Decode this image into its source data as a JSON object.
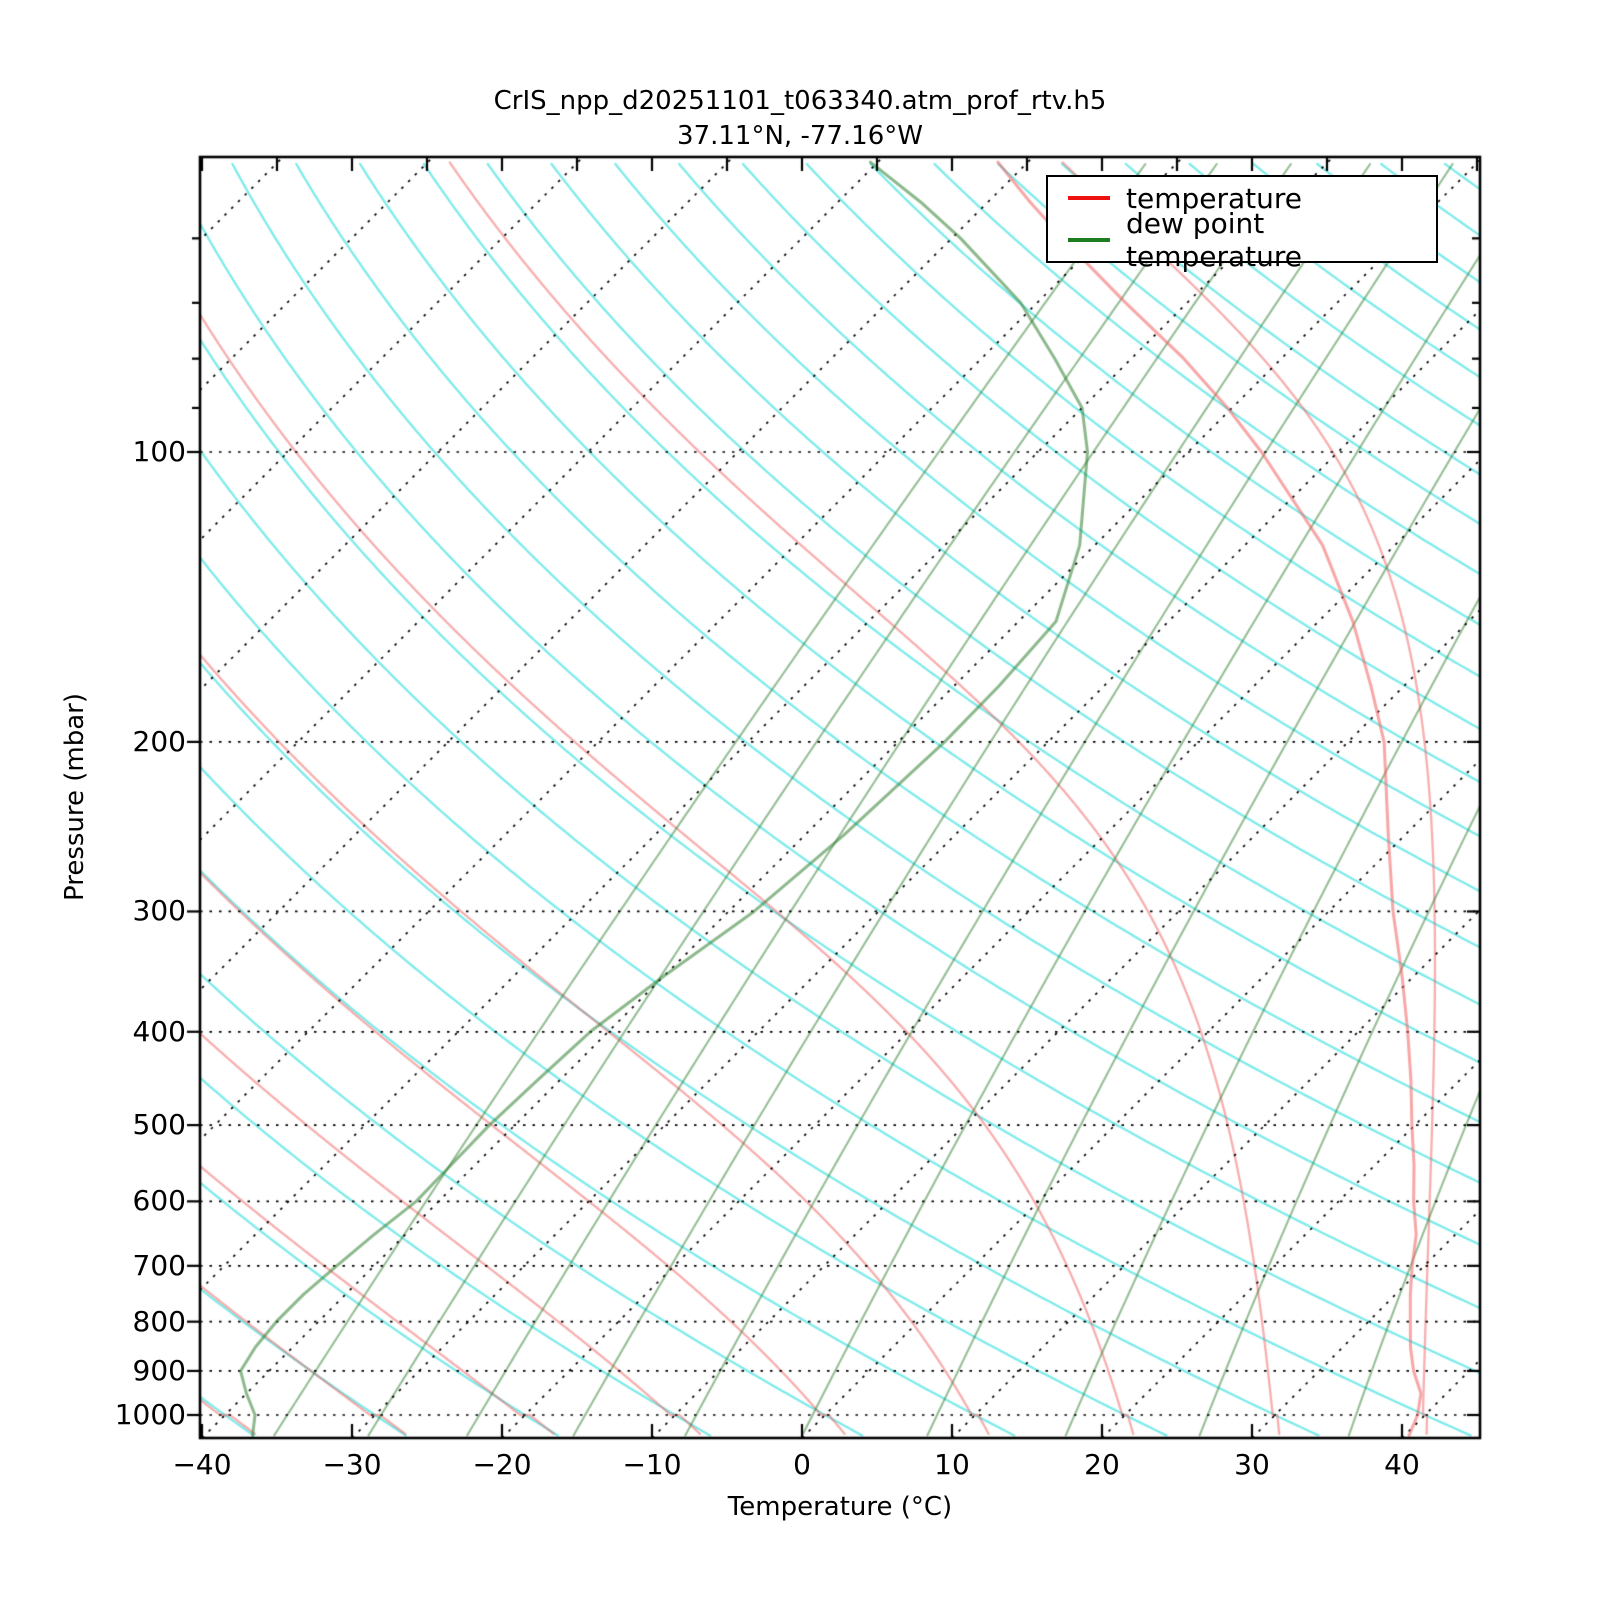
{
  "title": "CrIS_npp_d20251101_t063340.atm_prof_rtv.h5",
  "subtitle": "37.11°N, -77.16°W",
  "axes": {
    "x_label": "Temperature (°C)",
    "y_label": "Pressure (mbar)",
    "x_ticks": [
      {
        "label": "−40",
        "value": -40
      },
      {
        "label": "−30",
        "value": -30
      },
      {
        "label": "−20",
        "value": -20
      },
      {
        "label": "−10",
        "value": -10
      },
      {
        "label": "0",
        "value": 0
      },
      {
        "label": "10",
        "value": 10
      },
      {
        "label": "20",
        "value": 20
      },
      {
        "label": "30",
        "value": 30
      },
      {
        "label": "40",
        "value": 40
      }
    ],
    "y_ticks": [
      {
        "label": "100",
        "value": 100
      },
      {
        "label": "200",
        "value": 200
      },
      {
        "label": "300",
        "value": 300
      },
      {
        "label": "400",
        "value": 400
      },
      {
        "label": "500",
        "value": 500
      },
      {
        "label": "600",
        "value": 600
      },
      {
        "label": "700",
        "value": 700
      },
      {
        "label": "800",
        "value": 800
      },
      {
        "label": "900",
        "value": 900
      },
      {
        "label": "1000",
        "value": 1000
      }
    ]
  },
  "legend": {
    "entries": [
      {
        "label": "temperature",
        "color": "#ee1111"
      },
      {
        "label": "dew point temperature",
        "color": "#1e7d1e"
      }
    ]
  },
  "colors": {
    "dry_adiabat": "#00d8d8",
    "moist_adiabat": "#f25f5f",
    "mixing_ratio": "#2f7f2f",
    "temperature_curve": "#f25f5f",
    "dewpoint_curve": "#2f7f2f",
    "grid": "#000000"
  },
  "chart_data": {
    "type": "line",
    "subtype": "skew_t_log_p",
    "title": "CrIS_npp_d20251101_t063340.atm_prof_rtv.h5",
    "subtitle": "37.11°N, -77.16°W",
    "xlabel": "Temperature (°C)",
    "ylabel": "Pressure (mbar)",
    "x_range_c_at_surface": [
      -40.1,
      45.2
    ],
    "pressure_range_mbar": [
      50,
      1050
    ],
    "skew_deg": 45,
    "grid": {
      "isobars_mbar": [
        100,
        200,
        300,
        400,
        500,
        600,
        700,
        800,
        900,
        1000
      ],
      "isotherm_step_c": 10,
      "isotherms_c": [
        -120,
        -110,
        -100,
        -90,
        -80,
        -70,
        -60,
        -50,
        -40,
        -30,
        -20,
        -10,
        0,
        10,
        20,
        30,
        40
      ],
      "dry_adiabats_theta_c": {
        "start": -40,
        "end": 280,
        "step": 10
      },
      "moist_adiabats_tw_c_at_1000mb": [
        -60,
        -50,
        -40,
        -30,
        -20,
        -10,
        0,
        10,
        20,
        30,
        40
      ],
      "mixing_ratio_g_kg": [
        0.18,
        0.33,
        0.6,
        1.1,
        2.0,
        3.6,
        6.5,
        12,
        21,
        38,
        68
      ]
    },
    "legend_position": "upper right",
    "series": [
      {
        "name": "temperature",
        "units": [
          "mbar",
          "degC"
        ],
        "data": [
          [
            1050,
            40.3
          ],
          [
            1000,
            39.5
          ],
          [
            950,
            38.3
          ],
          [
            900,
            36.3
          ],
          [
            850,
            34.5
          ],
          [
            800,
            32.8
          ],
          [
            750,
            31.0
          ],
          [
            700,
            29.2
          ],
          [
            650,
            27.4
          ],
          [
            600,
            25.0
          ],
          [
            550,
            22.6
          ],
          [
            500,
            19.8
          ],
          [
            450,
            16.8
          ],
          [
            400,
            13.3
          ],
          [
            350,
            9.2
          ],
          [
            300,
            4.3
          ],
          [
            250,
            -1.1
          ],
          [
            200,
            -7.6
          ],
          [
            175,
            -12.2
          ],
          [
            150,
            -17.7
          ],
          [
            125,
            -24.8
          ],
          [
            100,
            -35.1
          ],
          [
            90,
            -40.3
          ],
          [
            80,
            -46.5
          ],
          [
            70,
            -54.1
          ],
          [
            60,
            -62.6
          ],
          [
            55,
            -67.2
          ],
          [
            50,
            -72.0
          ]
        ]
      },
      {
        "name": "dew point temperature",
        "units": [
          "mbar",
          "degC"
        ],
        "data": [
          [
            1050,
            -36.8
          ],
          [
            1000,
            -38.0
          ],
          [
            950,
            -40.0
          ],
          [
            900,
            -41.9
          ],
          [
            850,
            -42.5
          ],
          [
            800,
            -42.8
          ],
          [
            750,
            -42.8
          ],
          [
            700,
            -42.5
          ],
          [
            650,
            -42.1
          ],
          [
            600,
            -41.5
          ],
          [
            550,
            -41.6
          ],
          [
            500,
            -41.7
          ],
          [
            450,
            -41.5
          ],
          [
            400,
            -41.2
          ],
          [
            350,
            -40.0
          ],
          [
            300,
            -38.3
          ],
          [
            250,
            -37.4
          ],
          [
            200,
            -36.9
          ],
          [
            175,
            -37.0
          ],
          [
            150,
            -37.5
          ],
          [
            125,
            -41.0
          ],
          [
            100,
            -46.7
          ],
          [
            90,
            -50.0
          ],
          [
            80,
            -55.1
          ],
          [
            70,
            -61.1
          ],
          [
            60,
            -69.4
          ],
          [
            55,
            -74.5
          ],
          [
            50,
            -80.5
          ]
        ]
      }
    ]
  }
}
